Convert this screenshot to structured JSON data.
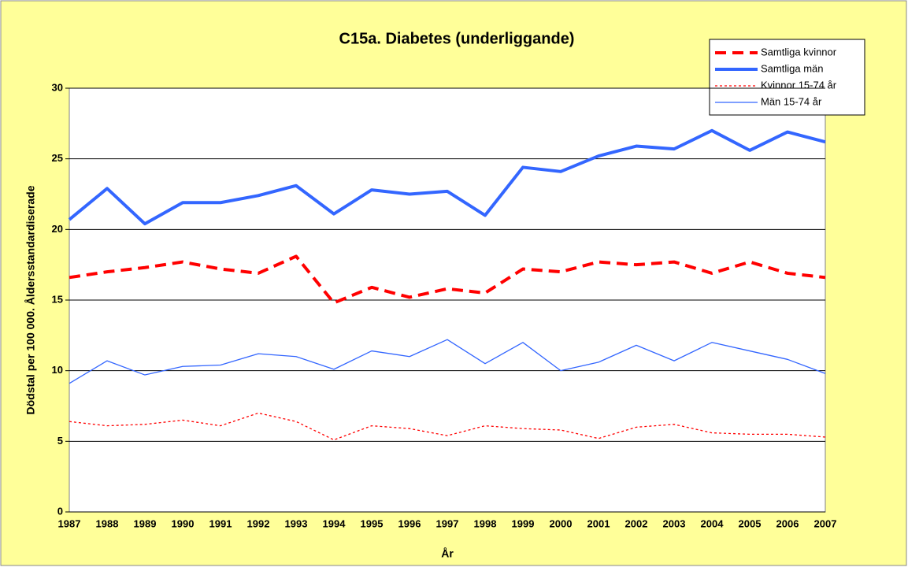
{
  "chart_data": {
    "type": "line",
    "title": "C15a. Diabetes (underliggande)",
    "xlabel": "År",
    "ylabel": "Dödstal per 100 000. Åldersstandardiserade",
    "categories": [
      "1987",
      "1988",
      "1989",
      "1990",
      "1991",
      "1992",
      "1993",
      "1994",
      "1995",
      "1996",
      "1997",
      "1998",
      "1999",
      "2000",
      "2001",
      "2002",
      "2003",
      "2004",
      "2005",
      "2006",
      "2007"
    ],
    "ylim": [
      0,
      30
    ],
    "yticks": [
      0,
      5,
      10,
      15,
      20,
      25,
      30
    ],
    "grid": true,
    "legend": "top-right",
    "series": [
      {
        "name": "Samtliga kvinnor",
        "color": "#ff0000",
        "width": 4,
        "dash": "14 8",
        "values": [
          16.6,
          17.0,
          17.3,
          17.7,
          17.2,
          16.9,
          18.1,
          14.8,
          15.9,
          15.2,
          15.8,
          15.5,
          17.2,
          17.0,
          17.7,
          17.5,
          17.7,
          16.9,
          17.7,
          16.9,
          16.6
        ]
      },
      {
        "name": "Samtliga män",
        "color": "#3366ff",
        "width": 4,
        "dash": "",
        "values": [
          20.7,
          22.9,
          20.4,
          21.9,
          21.9,
          22.4,
          23.1,
          21.1,
          22.8,
          22.5,
          22.7,
          21.0,
          24.4,
          24.1,
          25.2,
          25.9,
          25.7,
          27.0,
          25.6,
          26.9,
          26.2
        ]
      },
      {
        "name": "Kvinnor 15-74 år",
        "color": "#ff0000",
        "width": 1.3,
        "dash": "3 3",
        "values": [
          6.4,
          6.1,
          6.2,
          6.5,
          6.1,
          7.0,
          6.4,
          5.1,
          6.1,
          5.9,
          5.4,
          6.1,
          5.9,
          5.8,
          5.2,
          6.0,
          6.2,
          5.6,
          5.5,
          5.5,
          5.3
        ]
      },
      {
        "name": "Män 15-74 år",
        "color": "#3366ff",
        "width": 1.3,
        "dash": "",
        "values": [
          9.1,
          10.7,
          9.7,
          10.3,
          10.4,
          11.2,
          11.0,
          10.1,
          11.4,
          11.0,
          12.2,
          10.5,
          12.0,
          10.0,
          10.6,
          11.8,
          10.7,
          12.0,
          11.4,
          10.8,
          9.8
        ]
      }
    ]
  }
}
